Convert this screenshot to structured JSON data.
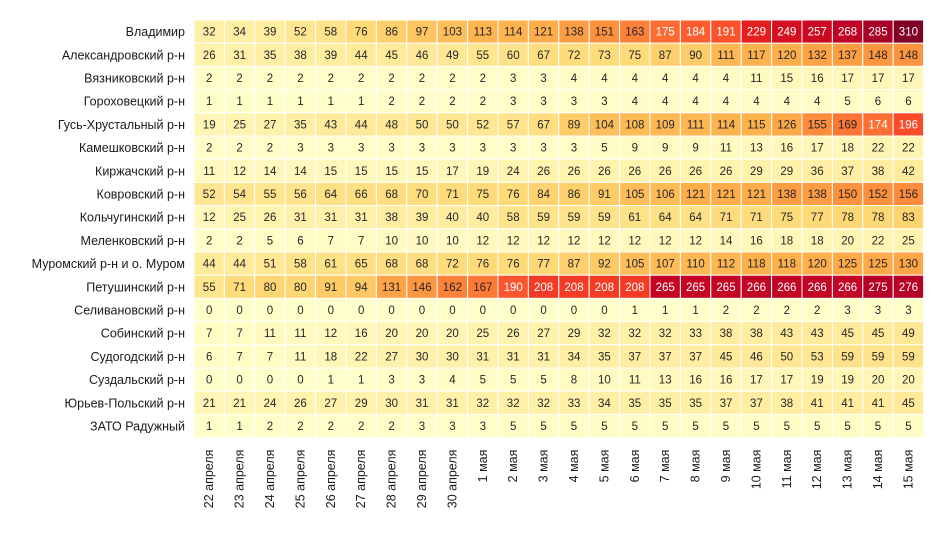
{
  "chart_data": {
    "type": "heatmap",
    "title": "",
    "xlabel": "",
    "ylabel": "",
    "grid": false,
    "legend": "none",
    "color_scale": [
      "#ffffcc",
      "#ffeda0",
      "#fed976",
      "#feb24c",
      "#fd8d3c",
      "#fc4e2a",
      "#e31a1c",
      "#bd0026",
      "#800026"
    ],
    "value_range": [
      0,
      310
    ],
    "columns": [
      "22 апреля",
      "23 апреля",
      "24 апреля",
      "25 апреля",
      "26 апреля",
      "27 апреля",
      "28 апреля",
      "29 апреля",
      "30 апреля",
      "1 мая",
      "2 мая",
      "3 мая",
      "4 мая",
      "5 мая",
      "6 мая",
      "7 мая",
      "8 мая",
      "9 мая",
      "10 мая",
      "11 мая",
      "12 мая",
      "13 мая",
      "14 мая",
      "15 мая"
    ],
    "rows": [
      "Владимир",
      "Александровский р-н",
      "Вязниковский р-н",
      "Гороховецкий р-н",
      "Гусь-Хрустальный р-н",
      "Камешковский р-н",
      "Киржачский р-н",
      "Ковровский р-н",
      "Кольчугинский р-н",
      "Меленковский р-н",
      "Муромский р-н и о. Муром",
      "Петушинский р-н",
      "Селивановский р-н",
      "Собинский р-н",
      "Судогодский р-н",
      "Суздальский р-н",
      "Юрьев-Польский р-н",
      "ЗАТО Радужный"
    ],
    "values": [
      [
        32,
        34,
        39,
        52,
        58,
        76,
        86,
        97,
        103,
        113,
        114,
        121,
        138,
        151,
        163,
        175,
        184,
        191,
        229,
        249,
        257,
        268,
        285,
        310
      ],
      [
        26,
        31,
        35,
        38,
        39,
        44,
        45,
        46,
        49,
        55,
        60,
        67,
        72,
        73,
        75,
        87,
        90,
        111,
        117,
        120,
        132,
        137,
        148,
        148
      ],
      [
        2,
        2,
        2,
        2,
        2,
        2,
        2,
        2,
        2,
        2,
        3,
        3,
        4,
        4,
        4,
        4,
        4,
        4,
        11,
        15,
        16,
        17,
        17,
        17
      ],
      [
        1,
        1,
        1,
        1,
        1,
        1,
        2,
        2,
        2,
        2,
        3,
        3,
        3,
        3,
        4,
        4,
        4,
        4,
        4,
        4,
        4,
        5,
        6,
        6
      ],
      [
        19,
        25,
        27,
        35,
        43,
        44,
        48,
        50,
        50,
        52,
        57,
        67,
        89,
        104,
        108,
        109,
        111,
        114,
        115,
        126,
        155,
        169,
        174,
        196
      ],
      [
        2,
        2,
        2,
        3,
        3,
        3,
        3,
        3,
        3,
        3,
        3,
        3,
        3,
        5,
        9,
        9,
        9,
        11,
        13,
        16,
        17,
        18,
        22,
        22
      ],
      [
        11,
        12,
        14,
        14,
        15,
        15,
        15,
        15,
        17,
        19,
        24,
        26,
        26,
        26,
        26,
        26,
        26,
        26,
        29,
        29,
        36,
        37,
        38,
        42
      ],
      [
        52,
        54,
        55,
        56,
        64,
        66,
        68,
        70,
        71,
        75,
        76,
        84,
        86,
        91,
        105,
        106,
        121,
        121,
        121,
        138,
        138,
        150,
        152,
        156
      ],
      [
        12,
        25,
        26,
        31,
        31,
        31,
        38,
        39,
        40,
        40,
        58,
        59,
        59,
        59,
        61,
        64,
        64,
        71,
        71,
        75,
        77,
        78,
        78,
        83
      ],
      [
        2,
        2,
        5,
        6,
        7,
        7,
        10,
        10,
        10,
        12,
        12,
        12,
        12,
        12,
        12,
        12,
        12,
        14,
        16,
        18,
        18,
        20,
        22,
        25
      ],
      [
        44,
        44,
        51,
        58,
        61,
        65,
        68,
        68,
        72,
        76,
        76,
        77,
        87,
        92,
        105,
        107,
        110,
        112,
        118,
        118,
        120,
        125,
        125,
        130
      ],
      [
        55,
        71,
        80,
        80,
        91,
        94,
        131,
        146,
        162,
        167,
        190,
        208,
        208,
        208,
        208,
        265,
        265,
        265,
        266,
        266,
        266,
        266,
        275,
        276
      ],
      [
        0,
        0,
        0,
        0,
        0,
        0,
        0,
        0,
        0,
        0,
        0,
        0,
        0,
        0,
        1,
        1,
        1,
        2,
        2,
        2,
        2,
        3,
        3,
        3
      ],
      [
        7,
        7,
        11,
        11,
        12,
        16,
        20,
        20,
        20,
        25,
        26,
        27,
        29,
        32,
        32,
        32,
        33,
        38,
        38,
        43,
        43,
        45,
        45,
        49
      ],
      [
        6,
        7,
        7,
        11,
        18,
        22,
        27,
        30,
        30,
        31,
        31,
        31,
        34,
        35,
        37,
        37,
        37,
        45,
        46,
        50,
        53,
        59,
        59,
        59
      ],
      [
        0,
        0,
        0,
        0,
        1,
        1,
        3,
        3,
        4,
        5,
        5,
        5,
        8,
        10,
        11,
        13,
        16,
        16,
        17,
        17,
        19,
        19,
        20,
        20
      ],
      [
        21,
        21,
        24,
        26,
        27,
        29,
        30,
        31,
        31,
        32,
        32,
        32,
        33,
        34,
        35,
        35,
        35,
        37,
        37,
        38,
        41,
        41,
        41,
        45
      ],
      [
        1,
        1,
        2,
        2,
        2,
        2,
        2,
        3,
        3,
        3,
        5,
        5,
        5,
        5,
        5,
        5,
        5,
        5,
        5,
        5,
        5,
        5,
        5,
        5
      ]
    ]
  }
}
